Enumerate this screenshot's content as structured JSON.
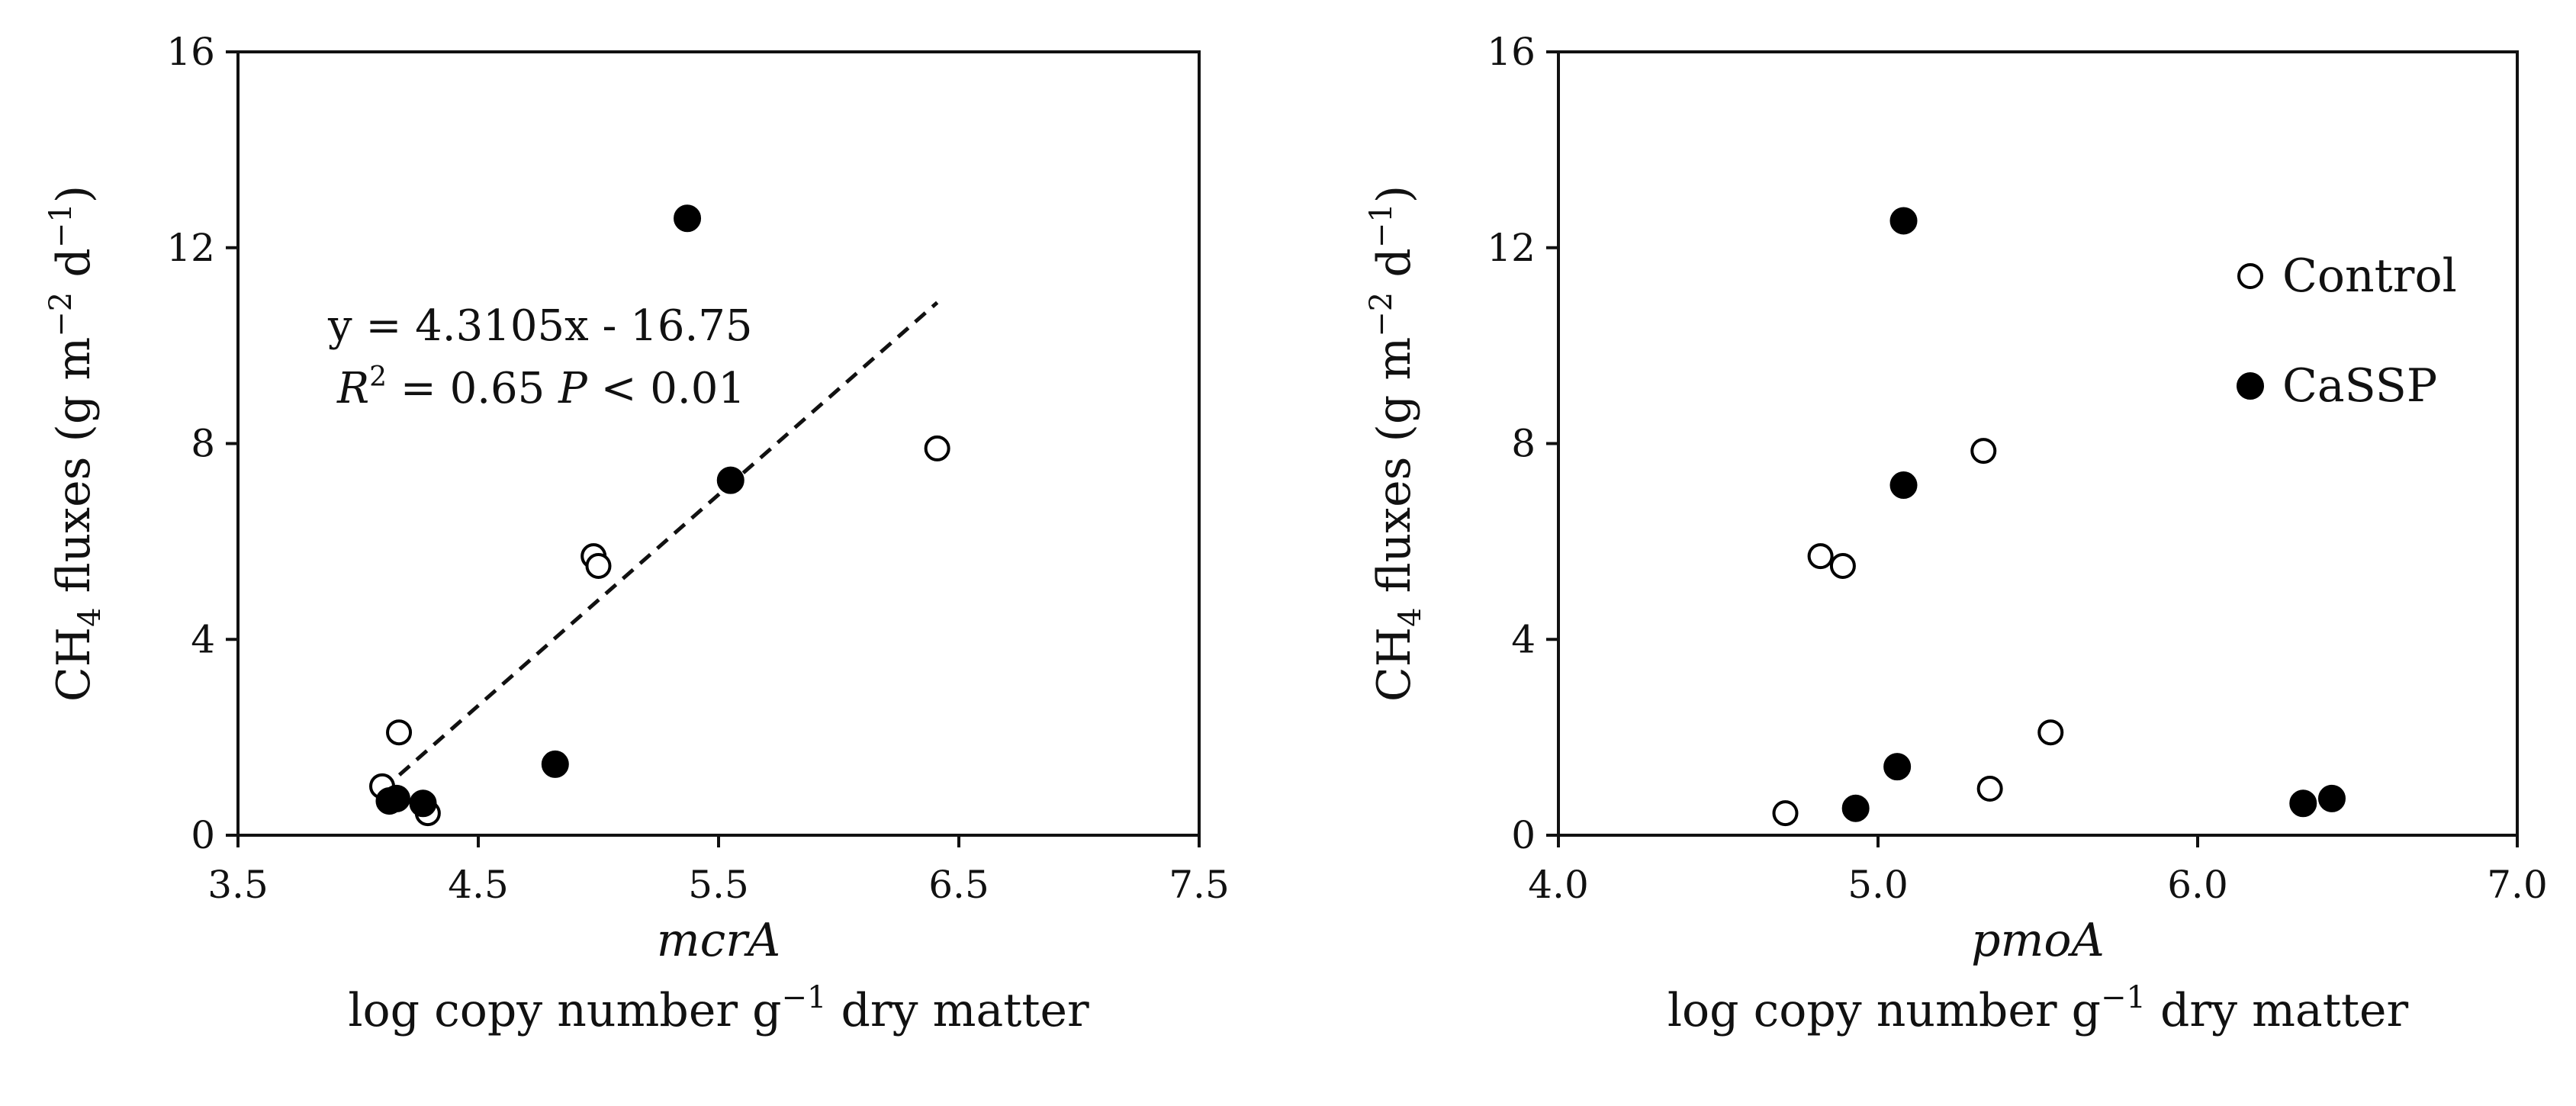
{
  "chart_data": [
    {
      "type": "scatter",
      "title": "",
      "xlabel_gene": "mcrA",
      "xlabel": "log copy number g−1 dry matter",
      "ylabel": "CH4 fluxes (g m−2 d−1)",
      "xlim": [
        3.5,
        7.5
      ],
      "ylim": [
        0,
        16
      ],
      "xticks": [
        "3.5",
        "4.5",
        "5.5",
        "6.5",
        "7.5"
      ],
      "yticks": [
        "0",
        "4",
        "8",
        "12",
        "16"
      ],
      "series": [
        {
          "name": "Control",
          "marker": "open-circle",
          "points": [
            [
              4.1,
              1.0
            ],
            [
              4.17,
              2.1
            ],
            [
              4.29,
              0.45
            ],
            [
              4.98,
              5.7
            ],
            [
              5.0,
              5.5
            ],
            [
              6.41,
              7.9
            ]
          ]
        },
        {
          "name": "CaSSP",
          "marker": "filled-circle",
          "points": [
            [
              4.13,
              0.7
            ],
            [
              4.16,
              0.75
            ],
            [
              4.27,
              0.65
            ],
            [
              4.82,
              1.45
            ],
            [
              5.37,
              12.6
            ],
            [
              5.55,
              7.25
            ]
          ]
        }
      ],
      "trendline": {
        "slope": 4.3105,
        "intercept": -16.75,
        "x_from": 4.1,
        "x_to": 6.41,
        "style": "dashed"
      },
      "annotation": {
        "equation": "y = 4.3105x - 16.75",
        "stats_r_label": "R",
        "stats_r_sup": "2",
        "stats_rest_a": " = 0.65 ",
        "stats_p_label": "P",
        "stats_rest_b": " < 0.01"
      },
      "legend": null
    },
    {
      "type": "scatter",
      "title": "",
      "xlabel_gene": "pmoA",
      "xlabel": "log copy number g−1 dry matter",
      "ylabel": "CH4 fluxes (g m−2 d−1)",
      "xlim": [
        4.0,
        7.0
      ],
      "ylim": [
        0,
        16
      ],
      "xticks": [
        "4.0",
        "5.0",
        "6.0",
        "7.0"
      ],
      "yticks": [
        "0",
        "4",
        "8",
        "12",
        "16"
      ],
      "series": [
        {
          "name": "Control",
          "marker": "open-circle",
          "points": [
            [
              4.71,
              0.45
            ],
            [
              4.82,
              5.7
            ],
            [
              4.89,
              5.5
            ],
            [
              5.33,
              7.85
            ],
            [
              5.35,
              0.95
            ],
            [
              5.54,
              2.1
            ]
          ]
        },
        {
          "name": "CaSSP",
          "marker": "filled-circle",
          "points": [
            [
              4.93,
              0.55
            ],
            [
              5.06,
              1.4
            ],
            [
              5.08,
              12.55
            ],
            [
              5.08,
              7.15
            ],
            [
              6.33,
              0.65
            ],
            [
              6.42,
              0.75
            ]
          ]
        }
      ],
      "legend": {
        "position": "top-right",
        "entries": [
          "Control",
          "CaSSP"
        ]
      }
    }
  ]
}
